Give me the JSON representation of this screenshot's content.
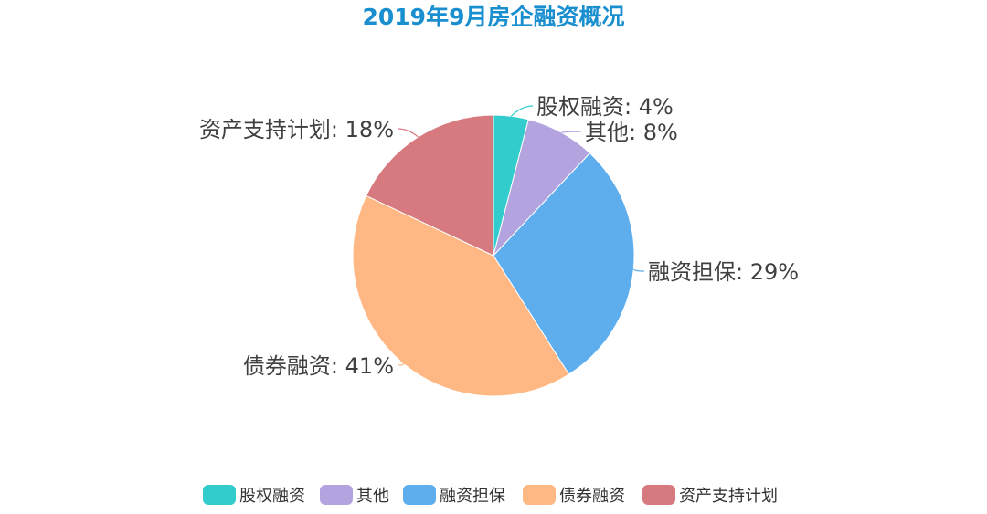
{
  "chart_data": {
    "type": "pie",
    "title": "2019年9月房企融资概况",
    "title_color": "#1a8fd0",
    "categories": [
      "股权融资",
      "其他",
      "融资担保",
      "债券融资",
      "资产支持计划"
    ],
    "values": [
      4,
      8,
      29,
      41,
      18
    ],
    "unit": "%",
    "colors": [
      "#33cccc",
      "#b3a3df",
      "#5eaeee",
      "#ffb884",
      "#d77a80"
    ],
    "data_labels": [
      "股权融资: 4%",
      "其他: 8%",
      "融资担保: 29%",
      "债券融资: 41%",
      "资产支持计划: 18%"
    ],
    "start_angle": "12 o'clock",
    "direction": "clockwise",
    "legend": {
      "position": "bottom",
      "items": [
        "股权融资",
        "其他",
        "融资担保",
        "债券融资",
        "资产支持计划"
      ]
    }
  }
}
